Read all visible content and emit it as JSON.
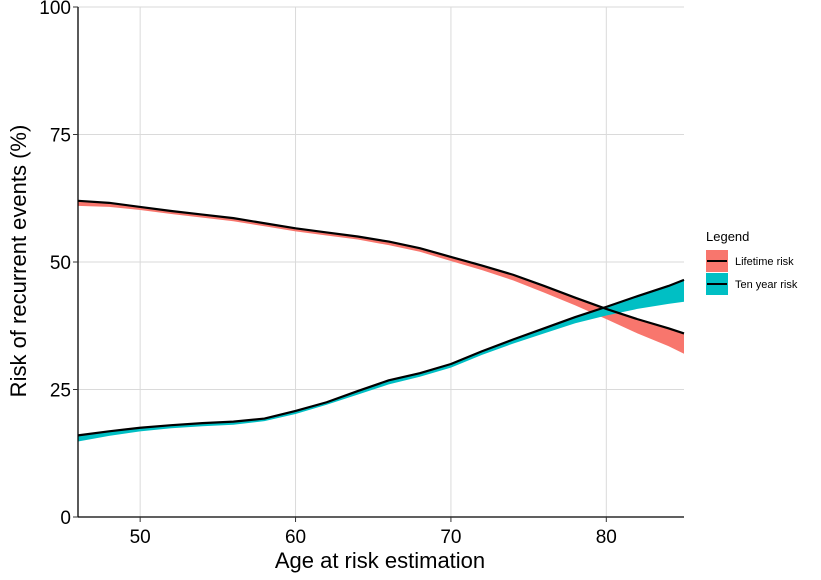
{
  "chart_data": {
    "type": "area",
    "xlabel": "Age at risk estimation",
    "ylabel": "Risk of recurrent events (%)",
    "xlim": [
      46,
      85
    ],
    "ylim": [
      0,
      100
    ],
    "x_ticks": [
      50,
      60,
      70,
      80
    ],
    "y_ticks": [
      0,
      25,
      50,
      75,
      100
    ],
    "grid": true,
    "legend": {
      "title": "Legend",
      "position": "right"
    },
    "x": [
      46,
      48,
      50,
      52,
      54,
      56,
      58,
      60,
      62,
      64,
      66,
      68,
      70,
      72,
      74,
      76,
      78,
      80,
      82,
      84,
      85
    ],
    "series": [
      {
        "name": "Lifetime risk",
        "color": "#F8766D",
        "upper": [
          62.0,
          61.6,
          60.8,
          60.0,
          59.3,
          58.6,
          57.6,
          56.6,
          55.8,
          55.0,
          54.0,
          52.7,
          51.0,
          49.3,
          47.5,
          45.3,
          43.0,
          40.8,
          38.8,
          37.0,
          36.0
        ],
        "lower": [
          61.0,
          60.8,
          60.2,
          59.4,
          58.7,
          58.0,
          57.0,
          56.0,
          55.2,
          54.4,
          53.3,
          52.0,
          50.2,
          48.4,
          46.4,
          44.0,
          41.5,
          38.8,
          36.0,
          33.5,
          32.0
        ]
      },
      {
        "name": "Ten year risk",
        "color": "#00BFC4",
        "upper": [
          16.0,
          16.8,
          17.5,
          18.0,
          18.4,
          18.7,
          19.3,
          20.8,
          22.5,
          24.7,
          26.8,
          28.2,
          30.0,
          32.5,
          34.8,
          37.0,
          39.2,
          41.2,
          43.3,
          45.3,
          46.5
        ],
        "lower": [
          14.8,
          15.9,
          16.8,
          17.4,
          17.8,
          18.1,
          18.8,
          20.2,
          22.0,
          24.0,
          26.0,
          27.5,
          29.3,
          31.8,
          34.0,
          36.0,
          38.0,
          39.5,
          40.8,
          41.8,
          42.2
        ]
      }
    ]
  }
}
